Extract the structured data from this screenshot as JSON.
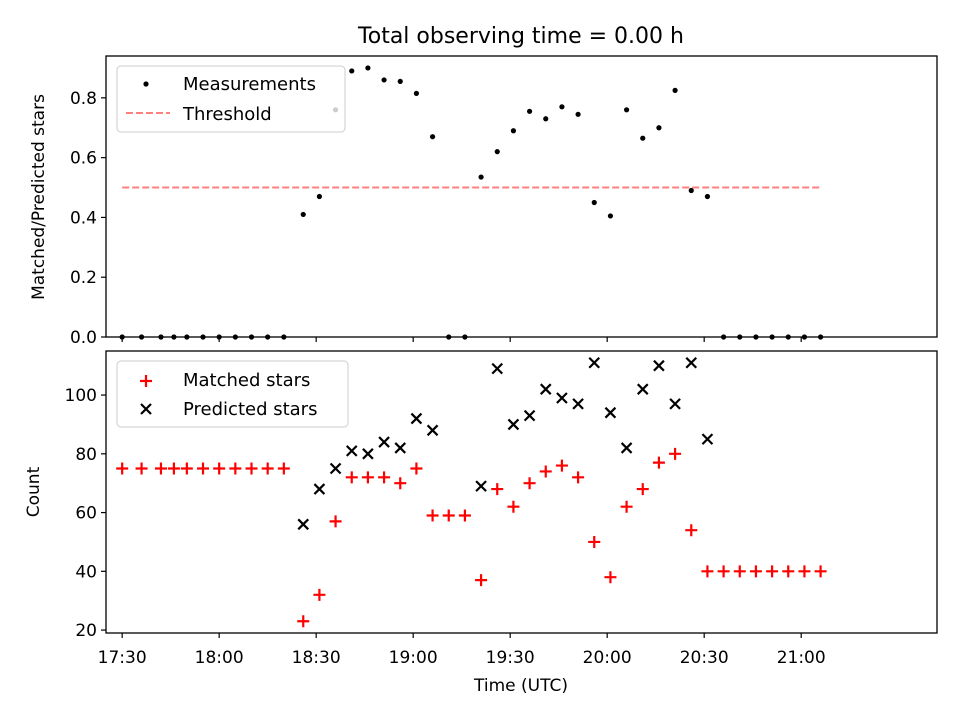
{
  "chart_data": [
    {
      "type": "scatter",
      "title": "Total observing time = 0.00 h",
      "xlabel": "",
      "ylabel": "Matched/Predicted stars",
      "xlim": [
        "17:25",
        "21:42"
      ],
      "ylim": [
        0,
        0.94
      ],
      "yticks": [
        0.0,
        0.2,
        0.4,
        0.6,
        0.8
      ],
      "ytick_labels": [
        "0.0",
        "0.2",
        "0.4",
        "0.6",
        "0.8"
      ],
      "legend_position": "top-left",
      "legend": [
        {
          "label": "Measurements",
          "marker": "dot",
          "color": "#000000"
        },
        {
          "label": "Threshold",
          "marker": "dashed-line",
          "color": "#ff7f7f"
        }
      ],
      "series": [
        {
          "name": "Measurements",
          "marker": "dot",
          "color": "#000000",
          "x": [
            "17:30",
            "17:36",
            "17:42",
            "17:46",
            "17:50",
            "17:55",
            "18:00",
            "18:05",
            "18:10",
            "18:15",
            "18:20",
            "18:26",
            "18:31",
            "18:36",
            "18:41",
            "18:46",
            "18:51",
            "18:56",
            "19:01",
            "19:06",
            "19:11",
            "19:16",
            "19:21",
            "19:26",
            "19:31",
            "19:36",
            "19:41",
            "19:46",
            "19:51",
            "19:56",
            "20:01",
            "20:06",
            "20:11",
            "20:16",
            "20:21",
            "20:26",
            "20:31",
            "20:36",
            "20:41",
            "20:46",
            "20:51",
            "20:56",
            "21:01",
            "21:06"
          ],
          "y": [
            0,
            0,
            0,
            0,
            0,
            0,
            0,
            0,
            0,
            0,
            0,
            0.41,
            0.47,
            0.76,
            0.89,
            0.9,
            0.86,
            0.855,
            0.815,
            0.67,
            0,
            0,
            0.535,
            0.62,
            0.69,
            0.755,
            0.73,
            0.77,
            0.745,
            0.45,
            0.405,
            0.76,
            0.665,
            0.7,
            0.825,
            0.49,
            0.47,
            0,
            0,
            0,
            0,
            0,
            0,
            0
          ]
        },
        {
          "name": "Threshold",
          "type": "line",
          "style": "dashed",
          "color": "#ff7f7f",
          "x": [
            "17:30",
            "21:06"
          ],
          "y": [
            0.5,
            0.5
          ]
        }
      ]
    },
    {
      "type": "scatter",
      "title": "",
      "xlabel": "Time (UTC)",
      "ylabel": "Count",
      "xlim": [
        "17:25",
        "21:42"
      ],
      "ylim": [
        19,
        115
      ],
      "xticks": [
        "17:30",
        "18:00",
        "18:30",
        "19:00",
        "19:30",
        "20:00",
        "20:30",
        "21:00"
      ],
      "yticks": [
        20,
        40,
        60,
        80,
        100
      ],
      "ytick_labels": [
        "20",
        "40",
        "60",
        "80",
        "100"
      ],
      "legend_position": "top-left",
      "legend": [
        {
          "label": "Matched stars",
          "marker": "plus",
          "color": "#ff0000"
        },
        {
          "label": "Predicted stars",
          "marker": "x",
          "color": "#000000"
        }
      ],
      "series": [
        {
          "name": "Matched stars",
          "marker": "plus",
          "color": "#ff0000",
          "x": [
            "17:30",
            "17:36",
            "17:42",
            "17:46",
            "17:50",
            "17:55",
            "18:00",
            "18:05",
            "18:10",
            "18:15",
            "18:20",
            "18:26",
            "18:31",
            "18:36",
            "18:41",
            "18:46",
            "18:51",
            "18:56",
            "19:01",
            "19:06",
            "19:11",
            "19:16",
            "19:21",
            "19:26",
            "19:31",
            "19:36",
            "19:41",
            "19:46",
            "19:51",
            "19:56",
            "20:01",
            "20:06",
            "20:11",
            "20:16",
            "20:21",
            "20:26",
            "20:31",
            "20:36",
            "20:41",
            "20:46",
            "20:51",
            "20:56",
            "21:01",
            "21:06"
          ],
          "y": [
            75,
            75,
            75,
            75,
            75,
            75,
            75,
            75,
            75,
            75,
            75,
            23,
            32,
            57,
            72,
            72,
            72,
            70,
            75,
            59,
            59,
            59,
            37,
            68,
            62,
            70,
            74,
            76,
            72,
            50,
            38,
            62,
            68,
            77,
            80,
            54,
            40,
            40,
            40,
            40,
            40,
            40,
            40,
            40
          ]
        },
        {
          "name": "Predicted stars",
          "marker": "x",
          "color": "#000000",
          "x": [
            "18:26",
            "18:31",
            "18:36",
            "18:41",
            "18:46",
            "18:51",
            "18:56",
            "19:01",
            "19:06",
            "19:21",
            "19:26",
            "19:31",
            "19:36",
            "19:41",
            "19:46",
            "19:51",
            "19:56",
            "20:01",
            "20:06",
            "20:11",
            "20:16",
            "20:21",
            "20:26",
            "20:31"
          ],
          "y": [
            56,
            68,
            75,
            81,
            80,
            84,
            82,
            92,
            88,
            69,
            109,
            90,
            93,
            102,
            99,
            97,
            111,
            94,
            82,
            102,
            110,
            97,
            111,
            85
          ]
        }
      ]
    }
  ]
}
